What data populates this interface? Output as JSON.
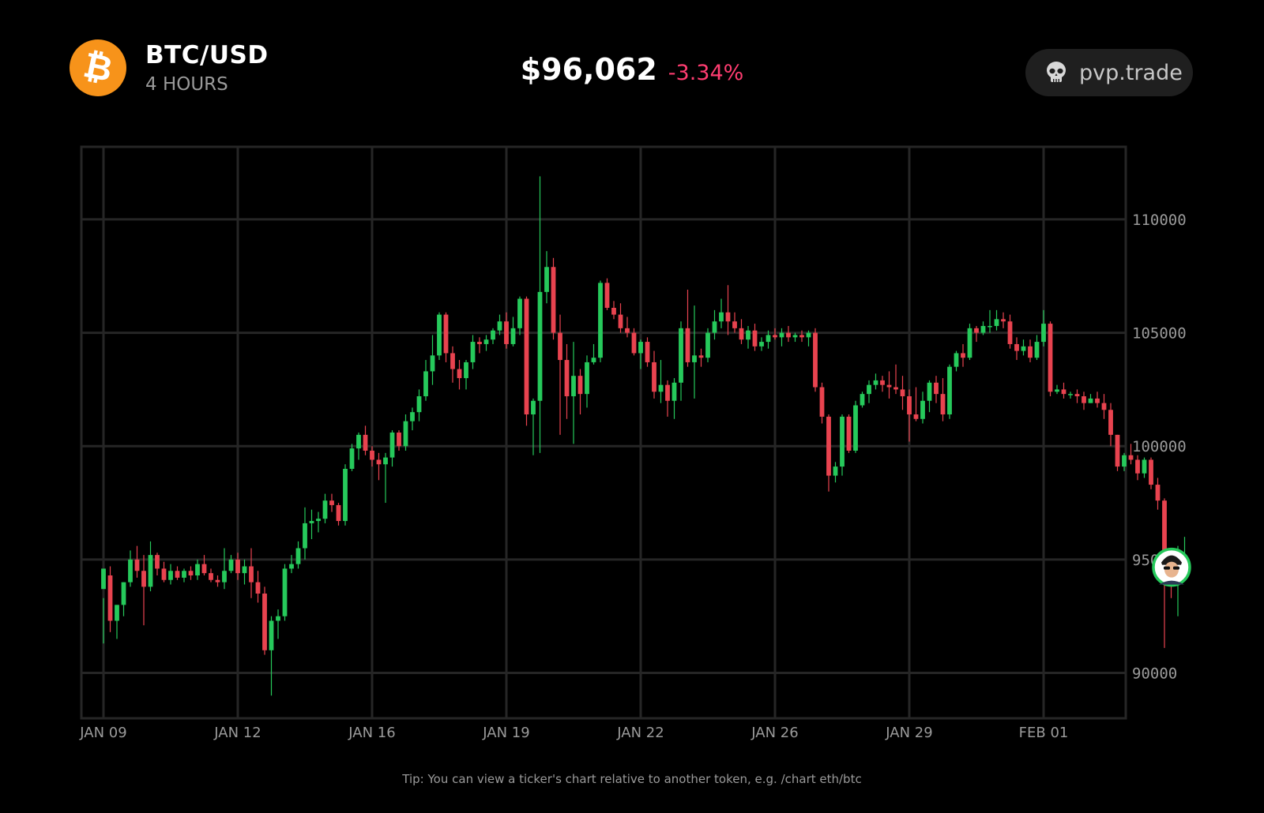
{
  "header": {
    "coin_symbol": "₿",
    "pair": "BTC/USD",
    "interval": "4 HOURS",
    "price": "$96,062",
    "change": "-3.34%",
    "brand": "pvp.trade"
  },
  "footer": {
    "tip": "Tip: You can view a ticker's chart relative to another token, e.g. /chart eth/btc"
  },
  "colors": {
    "background": "#000000",
    "grid": "#262626",
    "up": "#26c95b",
    "down": "#e8434f",
    "axis_text": "#9a9a9a",
    "change": "#ff3d71",
    "coin": "#f7931a"
  },
  "icons": {
    "coin": "bitcoin-icon",
    "brand": "skull-icon",
    "marker": "user-avatar-icon"
  },
  "chart_data": {
    "type": "candlestick",
    "x_ticks": [
      "JAN 09",
      "JAN 12",
      "JAN 16",
      "JAN 19",
      "JAN 22",
      "JAN 26",
      "JAN 29",
      "FEB 01"
    ],
    "y_ticks": [
      "90000",
      "95000",
      "100000",
      "105000",
      "110000"
    ],
    "ylim": [
      88000,
      113200
    ],
    "grid": true,
    "candles": [
      [
        93700,
        94600,
        93300,
        91300
      ],
      [
        94300,
        92300,
        94700,
        91800
      ],
      [
        92300,
        93000,
        93000,
        91500
      ],
      [
        93000,
        94000,
        94000,
        92500
      ],
      [
        94000,
        95000,
        95400,
        93800
      ],
      [
        95000,
        94500,
        95600,
        94200
      ],
      [
        94500,
        93800,
        95200,
        92100
      ],
      [
        93800,
        95200,
        95800,
        93600
      ],
      [
        95200,
        94600,
        95300,
        94300
      ],
      [
        94600,
        94100,
        94900,
        94000
      ],
      [
        94100,
        94500,
        94800,
        93900
      ],
      [
        94500,
        94200,
        94700,
        94100
      ],
      [
        94200,
        94500,
        94600,
        94000
      ],
      [
        94500,
        94300,
        94700,
        94100
      ],
      [
        94300,
        94800,
        95000,
        94100
      ],
      [
        94800,
        94400,
        95200,
        94300
      ],
      [
        94400,
        94100,
        94600,
        94000
      ],
      [
        94100,
        94000,
        94300,
        93800
      ],
      [
        94000,
        94500,
        95500,
        93700
      ],
      [
        94500,
        95000,
        95200,
        94400
      ],
      [
        95000,
        94400,
        95300,
        94100
      ],
      [
        94400,
        94700,
        95000,
        93900
      ],
      [
        94700,
        94000,
        95500,
        93300
      ],
      [
        94000,
        93500,
        94500,
        93100
      ],
      [
        93500,
        91000,
        93800,
        90800
      ],
      [
        91000,
        92300,
        92500,
        89000
      ],
      [
        92300,
        92500,
        92800,
        91500
      ],
      [
        92500,
        94600,
        94800,
        92300
      ],
      [
        94600,
        94800,
        95200,
        94400
      ],
      [
        94800,
        95500,
        95800,
        94600
      ],
      [
        95500,
        96600,
        97300,
        95000
      ],
      [
        96600,
        96700,
        97200,
        95900
      ],
      [
        96700,
        96800,
        97100,
        96200
      ],
      [
        96800,
        97600,
        97900,
        96600
      ],
      [
        97600,
        97400,
        97900,
        97100
      ],
      [
        97400,
        96700,
        97500,
        96500
      ],
      [
        96700,
        99000,
        99200,
        96500
      ],
      [
        99000,
        99900,
        100100,
        98900
      ],
      [
        99900,
        100500,
        100600,
        99400
      ],
      [
        100500,
        99800,
        100900,
        99600
      ],
      [
        99800,
        99400,
        100000,
        99100
      ],
      [
        99400,
        99200,
        99700,
        98500
      ],
      [
        99200,
        99500,
        99700,
        97500
      ],
      [
        99500,
        100600,
        100700,
        99100
      ],
      [
        100600,
        100000,
        100700,
        99800
      ],
      [
        100000,
        101100,
        101400,
        99800
      ],
      [
        101100,
        101500,
        101700,
        100700
      ],
      [
        101500,
        102200,
        102500,
        101100
      ],
      [
        102200,
        103300,
        103800,
        102000
      ],
      [
        103300,
        104000,
        104900,
        102700
      ],
      [
        104000,
        105800,
        105900,
        103800
      ],
      [
        105800,
        104100,
        105900,
        103700
      ],
      [
        104100,
        103400,
        104400,
        102800
      ],
      [
        103400,
        103000,
        103800,
        102500
      ],
      [
        103000,
        103700,
        103800,
        102500
      ],
      [
        103700,
        104600,
        104900,
        103400
      ],
      [
        104600,
        104500,
        104800,
        104100
      ],
      [
        104500,
        104700,
        104900,
        104200
      ],
      [
        104700,
        105100,
        105200,
        104500
      ],
      [
        105100,
        105500,
        105800,
        104900
      ],
      [
        105500,
        104500,
        105900,
        104300
      ],
      [
        104500,
        105200,
        105700,
        104400
      ],
      [
        105200,
        106500,
        106600,
        104900
      ],
      [
        106500,
        101400,
        106600,
        100900
      ],
      [
        101400,
        102000,
        102100,
        99600
      ],
      [
        102000,
        106800,
        111900,
        99700
      ],
      [
        106800,
        107900,
        108600,
        106300
      ],
      [
        107900,
        105000,
        108300,
        104700
      ],
      [
        105000,
        103800,
        105800,
        100500
      ],
      [
        103800,
        102200,
        104500,
        101200
      ],
      [
        102200,
        103100,
        104600,
        100100
      ],
      [
        103100,
        102300,
        103400,
        101400
      ],
      [
        102300,
        103700,
        104000,
        101700
      ],
      [
        103700,
        103900,
        104500,
        103600
      ],
      [
        103900,
        107200,
        107300,
        103700
      ],
      [
        107200,
        106100,
        107400,
        106000
      ],
      [
        106100,
        105800,
        106400,
        105600
      ],
      [
        105800,
        105200,
        106300,
        105000
      ],
      [
        105200,
        105000,
        105700,
        104800
      ],
      [
        105000,
        104100,
        105200,
        104000
      ],
      [
        104100,
        104600,
        104700,
        103400
      ],
      [
        104600,
        103700,
        104800,
        103500
      ],
      [
        103700,
        102400,
        104200,
        102100
      ],
      [
        102400,
        102700,
        103800,
        101900
      ],
      [
        102700,
        102000,
        102900,
        101300
      ],
      [
        102000,
        102800,
        103000,
        101200
      ],
      [
        102800,
        105200,
        105500,
        102000
      ],
      [
        105200,
        103700,
        106900,
        103500
      ],
      [
        103700,
        104000,
        106200,
        102100
      ],
      [
        104000,
        103900,
        104300,
        103500
      ],
      [
        103900,
        105000,
        105200,
        103700
      ],
      [
        105000,
        105500,
        106000,
        104700
      ],
      [
        105500,
        105900,
        106500,
        105200
      ],
      [
        105900,
        105500,
        107100,
        104900
      ],
      [
        105500,
        105200,
        105900,
        105000
      ],
      [
        105200,
        104700,
        105600,
        104500
      ],
      [
        104700,
        105100,
        105300,
        104300
      ],
      [
        105100,
        104400,
        105400,
        104200
      ],
      [
        104400,
        104600,
        104800,
        104200
      ],
      [
        104600,
        104900,
        105100,
        104300
      ],
      [
        104900,
        104800,
        105200,
        104700
      ],
      [
        104800,
        105000,
        105200,
        104400
      ],
      [
        105000,
        104800,
        105300,
        104600
      ],
      [
        104800,
        104900,
        105000,
        104600
      ],
      [
        104900,
        104800,
        105100,
        104600
      ],
      [
        104800,
        105000,
        105100,
        104400
      ],
      [
        105000,
        102600,
        105200,
        102400
      ],
      [
        102600,
        101300,
        102800,
        101000
      ],
      [
        101300,
        98700,
        101400,
        98000
      ],
      [
        98700,
        99100,
        99300,
        98400
      ],
      [
        99100,
        101300,
        101400,
        98700
      ],
      [
        101300,
        99800,
        101400,
        99700
      ],
      [
        99800,
        101800,
        102000,
        99700
      ],
      [
        101800,
        102300,
        102400,
        101700
      ],
      [
        102300,
        102700,
        102900,
        101900
      ],
      [
        102700,
        102900,
        103200,
        102500
      ],
      [
        102900,
        102700,
        103100,
        102400
      ],
      [
        102700,
        102600,
        103300,
        102100
      ],
      [
        102600,
        102500,
        103600,
        102300
      ],
      [
        102500,
        102200,
        103100,
        101600
      ],
      [
        102200,
        101400,
        102500,
        100200
      ],
      [
        101400,
        101200,
        102600,
        101100
      ],
      [
        101200,
        102000,
        102400,
        101000
      ],
      [
        102000,
        102800,
        102900,
        101500
      ],
      [
        102800,
        102300,
        103100,
        101900
      ],
      [
        102300,
        101400,
        103000,
        101100
      ],
      [
        101400,
        103500,
        103600,
        101200
      ],
      [
        103500,
        104100,
        104200,
        103300
      ],
      [
        104100,
        103900,
        104500,
        103500
      ],
      [
        103900,
        105200,
        105400,
        103800
      ],
      [
        105200,
        105000,
        105300,
        104600
      ],
      [
        105000,
        105300,
        105500,
        104900
      ],
      [
        105300,
        105300,
        106000,
        105000
      ],
      [
        105300,
        105600,
        106000,
        105100
      ],
      [
        105600,
        105500,
        105900,
        105200
      ],
      [
        105500,
        104500,
        105800,
        104300
      ],
      [
        104500,
        104200,
        104800,
        103800
      ],
      [
        104200,
        104400,
        104700,
        104000
      ],
      [
        104400,
        103900,
        104700,
        103700
      ],
      [
        103900,
        104600,
        104900,
        103800
      ],
      [
        104600,
        105400,
        106000,
        104400
      ],
      [
        105400,
        102400,
        105500,
        102200
      ],
      [
        102400,
        102500,
        102700,
        102300
      ],
      [
        102500,
        102300,
        102800,
        102100
      ],
      [
        102300,
        102300,
        102400,
        102100
      ],
      [
        102300,
        102200,
        102500,
        101900
      ],
      [
        102200,
        101900,
        102400,
        101600
      ],
      [
        101900,
        102100,
        102300,
        101900
      ],
      [
        102100,
        101900,
        102400,
        101700
      ],
      [
        101900,
        101600,
        102300,
        101200
      ],
      [
        101600,
        100500,
        101900,
        100000
      ],
      [
        100500,
        99100,
        100500,
        98900
      ],
      [
        99100,
        99600,
        99700,
        98900
      ],
      [
        99600,
        99400,
        100100,
        99200
      ],
      [
        99400,
        98800,
        99600,
        98500
      ],
      [
        98800,
        99400,
        99500,
        98600
      ],
      [
        99400,
        98300,
        99500,
        98100
      ],
      [
        98300,
        97600,
        98600,
        97200
      ],
      [
        97600,
        95300,
        97700,
        91100
      ],
      [
        95300,
        94100,
        95400,
        93300
      ],
      [
        94100,
        94800,
        95600,
        92500
      ],
      [
        94800,
        95200,
        96000,
        94700
      ]
    ],
    "last_price": 96062,
    "price_change_pct": -3.34
  }
}
